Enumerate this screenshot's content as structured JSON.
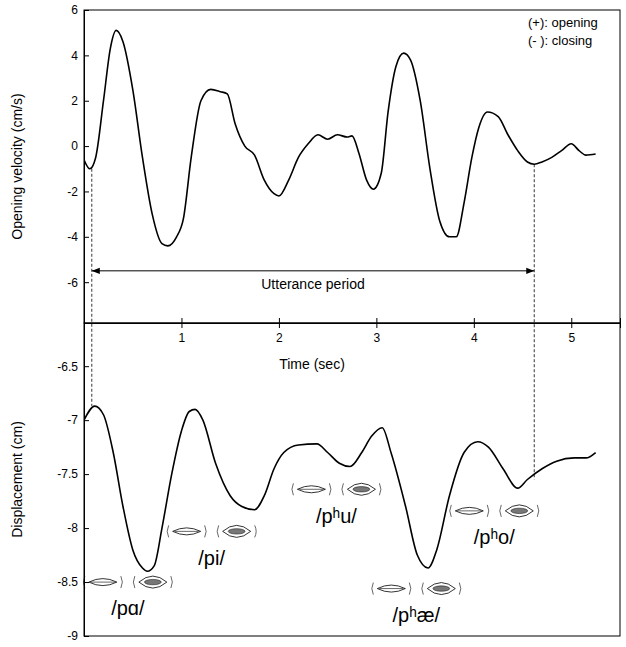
{
  "chart_data": [
    {
      "type": "line",
      "y_label": "Opening velocity (cm/s)",
      "x": [
        0,
        0.06,
        0.12,
        0.2,
        0.27,
        0.33,
        0.4,
        0.5,
        0.6,
        0.7,
        0.8,
        0.86,
        0.95,
        1.02,
        1.1,
        1.2,
        1.3,
        1.4,
        1.47,
        1.55,
        1.65,
        1.75,
        1.85,
        1.95,
        2.0,
        2.1,
        2.2,
        2.3,
        2.4,
        2.5,
        2.6,
        2.7,
        2.75,
        2.82,
        2.9,
        2.97,
        3.05,
        3.12,
        3.2,
        3.28,
        3.35,
        3.45,
        3.55,
        3.65,
        3.75,
        3.82,
        3.9,
        3.98,
        4.05,
        4.14,
        4.25,
        4.35,
        4.45,
        4.55,
        4.62,
        4.7,
        4.8,
        4.9,
        5.0,
        5.08,
        5.15,
        5.25
      ],
      "values": [
        -0.6,
        -1.0,
        -0.5,
        2.0,
        4.3,
        5.1,
        4.6,
        2.5,
        -0.5,
        -3.0,
        -4.3,
        -4.4,
        -4.0,
        -3.2,
        -0.5,
        2.0,
        2.5,
        2.4,
        2.3,
        1.0,
        0,
        -0.4,
        -1.5,
        -2.1,
        -2.2,
        -1.5,
        -0.5,
        0.1,
        0.5,
        0.3,
        0.5,
        0.4,
        0.45,
        -0.3,
        -1.5,
        -1.9,
        -1.2,
        1.5,
        3.5,
        4.1,
        3.8,
        2.0,
        -1.0,
        -3.3,
        -4.0,
        -4.0,
        -2.5,
        -0.5,
        0.8,
        1.5,
        1.3,
        0.5,
        -0.2,
        -0.7,
        -0.8,
        -0.7,
        -0.5,
        -0.2,
        0.1,
        -0.2,
        -0.4,
        -0.35
      ],
      "color": "#000000",
      "xlim": [
        0,
        5.5
      ],
      "xticks": [
        1,
        2,
        3,
        4,
        5
      ],
      "ylim": [
        -7.8,
        6
      ],
      "yticks": [
        -6,
        -4,
        -2,
        0,
        2,
        4,
        6
      ],
      "tick_labels": "y",
      "annotations": [
        {
          "text": "(+): opening"
        },
        {
          "text": "(- ): closing"
        }
      ],
      "span": {
        "text": "Utterance period",
        "start": 0.08,
        "end": 4.62,
        "y": -5.5
      }
    },
    {
      "type": "line",
      "x_label": "Time (sec)",
      "y_label": "Displacement (cm)",
      "x": [
        0,
        0.11,
        0.2,
        0.3,
        0.4,
        0.5,
        0.6,
        0.65,
        0.72,
        0.8,
        0.9,
        1.0,
        1.08,
        1.14,
        1.22,
        1.35,
        1.5,
        1.62,
        1.75,
        1.85,
        1.95,
        2.05,
        2.2,
        2.39,
        2.5,
        2.62,
        2.73,
        2.85,
        2.95,
        3.06,
        3.15,
        3.3,
        3.42,
        3.53,
        3.62,
        3.75,
        3.9,
        4.04,
        4.15,
        4.3,
        4.45,
        4.55,
        4.7,
        4.85,
        5.03,
        5.15,
        5.25
      ],
      "values": [
        -7.0,
        -6.87,
        -6.95,
        -7.3,
        -7.8,
        -8.2,
        -8.37,
        -8.4,
        -8.35,
        -8.0,
        -7.5,
        -7.1,
        -6.92,
        -6.9,
        -7.0,
        -7.4,
        -7.7,
        -7.8,
        -7.83,
        -7.7,
        -7.45,
        -7.3,
        -7.23,
        -7.22,
        -7.3,
        -7.4,
        -7.43,
        -7.3,
        -7.15,
        -7.07,
        -7.3,
        -7.8,
        -8.25,
        -8.37,
        -8.2,
        -7.7,
        -7.3,
        -7.2,
        -7.25,
        -7.45,
        -7.63,
        -7.55,
        -7.45,
        -7.38,
        -7.35,
        -7.35,
        -7.3
      ],
      "color": "#000000",
      "xlim": [
        0,
        5.5
      ],
      "xticks": [
        1,
        2,
        3,
        4,
        5
      ],
      "ylim": [
        -9,
        -6.1
      ],
      "yticks": [
        -9,
        -8.5,
        -8,
        -7.5,
        -7,
        -6.5
      ],
      "annotations": [
        {
          "text": "/pɑ/",
          "x": 0.45,
          "y": -8.76
        },
        {
          "text": "/pi/",
          "x": 1.31,
          "y": -8.29
        },
        {
          "text": "/pʰu/",
          "x": 2.59,
          "y": -7.9
        },
        {
          "text": "/pʰæ/",
          "x": 3.41,
          "y": -8.82
        },
        {
          "text": "/pʰo/",
          "x": 4.21,
          "y": -8.1
        }
      ]
    }
  ]
}
